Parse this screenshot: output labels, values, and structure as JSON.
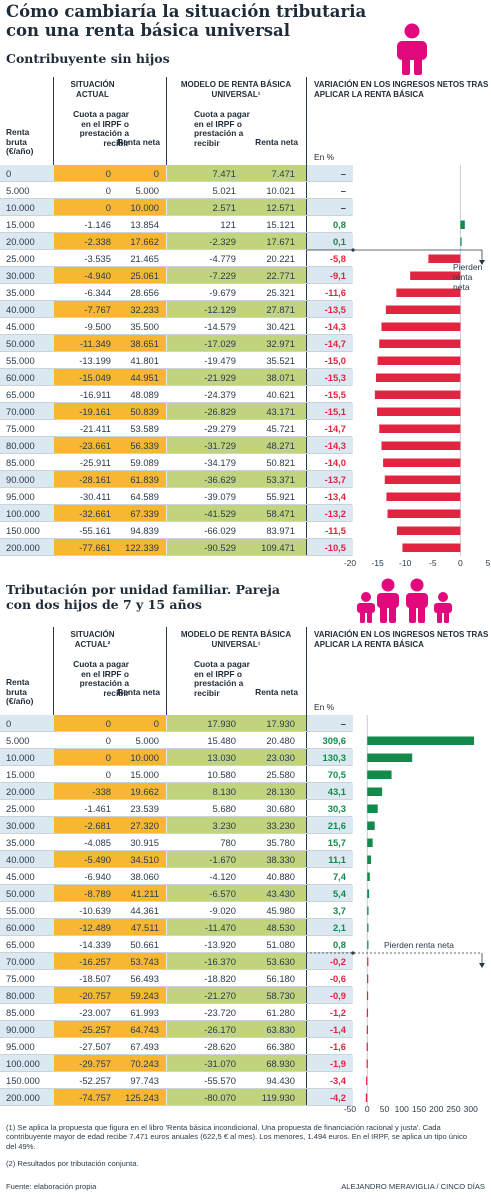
{
  "title": "Cómo cambiaría la situación tributaria con una renta básica universal",
  "colors": {
    "accent": "#e2097d",
    "yellow": "#f7b733",
    "green": "#c2d37e",
    "blue": "#dbe8f1",
    "pos_bar": "#138a4a",
    "neg_bar": "#e1243f",
    "pos_text": "#138a4a",
    "neg_text": "#e1243f"
  },
  "headers": {
    "situacion": "SITUACIÓN ACTUAL",
    "situacion2": "SITUACIÓN ACTUAL²",
    "modelo": "MODELO DE RENTA BÁSICA UNIVERSAL¹",
    "variacion": "VARIACIÓN EN LOS INGRESOS NETOS TRAS APLICAR LA RENTA BÁSICA",
    "renta_bruta": "Renta bruta (€/año)",
    "cuota": "Cuota a pagar en el IRPF o prestación a recibir",
    "renta_neta": "Renta neta",
    "en_pct": "En %"
  },
  "chart_data": [
    {
      "type": "bar",
      "title": "Contribuyente sin hijos",
      "categories": [
        "0",
        "5.000",
        "10.000",
        "15.000",
        "20.000",
        "25.000",
        "30.000",
        "35.000",
        "40.000",
        "45.000",
        "50.000",
        "55.000",
        "60.000",
        "65.000",
        "70.000",
        "75.000",
        "80.000",
        "85.000",
        "90.000",
        "95.000",
        "100.000",
        "150.000",
        "200.000"
      ],
      "cuota_actual": [
        "0",
        "0",
        "0",
        "-1.146",
        "-2.338",
        "-3.535",
        "-4.940",
        "-6.344",
        "-7.767",
        "-9.500",
        "-11.349",
        "-13.199",
        "-15.049",
        "-16.911",
        "-19.161",
        "-21.411",
        "-23.661",
        "-25.911",
        "-28.161",
        "-30.411",
        "-32.661",
        "-55.161",
        "-77.661"
      ],
      "neta_actual": [
        "0",
        "5.000",
        "10.000",
        "13.854",
        "17.662",
        "21.465",
        "25.061",
        "28.656",
        "32.233",
        "35.500",
        "38.651",
        "41.801",
        "44.951",
        "48.089",
        "50.839",
        "53.589",
        "56.339",
        "59.089",
        "61.839",
        "64.589",
        "67.339",
        "94.839",
        "122.339"
      ],
      "cuota_rbu": [
        "7.471",
        "5.021",
        "2.571",
        "121",
        "-2.329",
        "-4.779",
        "-7.229",
        "-9.679",
        "-12.129",
        "-14.579",
        "-17.029",
        "-19.479",
        "-21.929",
        "-24.379",
        "-26.829",
        "-29.279",
        "-31.729",
        "-34.179",
        "-36.629",
        "-39.079",
        "-41.529",
        "-66.029",
        "-90.529"
      ],
      "neta_rbu": [
        "7.471",
        "10.021",
        "12.571",
        "15.121",
        "17.671",
        "20.221",
        "22.771",
        "25.321",
        "27.871",
        "30.421",
        "32.971",
        "35.521",
        "38.071",
        "40.621",
        "43.171",
        "45.721",
        "48.271",
        "50.821",
        "53.371",
        "55.921",
        "58.471",
        "83.971",
        "109.471"
      ],
      "variacion_labels": [
        "–",
        "–",
        "–",
        "0,8",
        "0,1",
        "-5,8",
        "-9,1",
        "-11,6",
        "-13,5",
        "-14,3",
        "-14,7",
        "-15,0",
        "-15,3",
        "-15,5",
        "-15,1",
        "-14,7",
        "-14,3",
        "-14,0",
        "-13,7",
        "-13,4",
        "-13,2",
        "-11,5",
        "-10,5"
      ],
      "values": [
        null,
        null,
        null,
        0.8,
        0.1,
        -5.8,
        -9.1,
        -11.6,
        -13.5,
        -14.3,
        -14.7,
        -15.0,
        -15.3,
        -15.5,
        -15.1,
        -14.7,
        -14.3,
        -14.0,
        -13.7,
        -13.4,
        -13.2,
        -11.5,
        -10.5
      ],
      "xlim": [
        -20,
        5
      ],
      "ticks": [
        -20,
        -15,
        -10,
        -5,
        0,
        5
      ],
      "tick_labels": [
        "-20",
        "-15",
        "-10",
        "-5",
        "0",
        "5"
      ],
      "annotation": "Pierden renta neta",
      "annotation_after_row": 4
    },
    {
      "type": "bar",
      "title": "Tributación por unidad familiar. Pareja con dos hijos de 7 y 15 años",
      "categories": [
        "0",
        "5.000",
        "10.000",
        "15.000",
        "20.000",
        "25.000",
        "30.000",
        "35.000",
        "40.000",
        "45.000",
        "50.000",
        "55.000",
        "60.000",
        "65.000",
        "70.000",
        "75.000",
        "80.000",
        "85.000",
        "90.000",
        "95.000",
        "100.000",
        "150.000",
        "200.000"
      ],
      "cuota_actual": [
        "0",
        "0",
        "0",
        "0",
        "-338",
        "-1.461",
        "-2.681",
        "-4.085",
        "-5.490",
        "-6.940",
        "-8.789",
        "-10.639",
        "-12.489",
        "-14.339",
        "-16.257",
        "-18.507",
        "-20.757",
        "-23.007",
        "-25.257",
        "-27.507",
        "-29.757",
        "-52.257",
        "-74.757"
      ],
      "neta_actual": [
        "0",
        "5.000",
        "10.000",
        "15.000",
        "19.662",
        "23.539",
        "27.320",
        "30.915",
        "34.510",
        "38.060",
        "41.211",
        "44.361",
        "47.511",
        "50.661",
        "53.743",
        "56.493",
        "59.243",
        "61.993",
        "64.743",
        "67.493",
        "70.243",
        "97.743",
        "125.243"
      ],
      "cuota_rbu": [
        "17.930",
        "15.480",
        "13.030",
        "10.580",
        "8.130",
        "5.680",
        "3.230",
        "780",
        "-1.670",
        "-4.120",
        "-6.570",
        "-9.020",
        "-11.470",
        "-13.920",
        "-16.370",
        "-18.820",
        "-21.270",
        "-23.720",
        "-26.170",
        "-28.620",
        "-31.070",
        "-55.570",
        "-80.070"
      ],
      "neta_rbu": [
        "17.930",
        "20.480",
        "23.030",
        "25.580",
        "28.130",
        "30.680",
        "33.230",
        "35.780",
        "38.330",
        "40.880",
        "43.430",
        "45.980",
        "48.530",
        "51.080",
        "53.630",
        "56.180",
        "58.730",
        "61.280",
        "63.830",
        "66.380",
        "68.930",
        "94.430",
        "119.930"
      ],
      "variacion_labels": [
        "–",
        "309,6",
        "130,3",
        "70,5",
        "43,1",
        "30,3",
        "21,6",
        "15,7",
        "11,1",
        "7,4",
        "5,4",
        "3,7",
        "2,1",
        "0,8",
        "-0,2",
        "-0,6",
        "-0,9",
        "-1,2",
        "-1,4",
        "-1,6",
        "-1,9",
        "-3,4",
        "-4,2"
      ],
      "values": [
        null,
        309.6,
        130.3,
        70.5,
        43.1,
        30.3,
        21.6,
        15.7,
        11.1,
        7.4,
        5.4,
        3.7,
        2.1,
        0.8,
        -0.2,
        -0.6,
        -0.9,
        -1.2,
        -1.4,
        -1.6,
        -1.9,
        -3.4,
        -4.2
      ],
      "xlim": [
        -50,
        350
      ],
      "ticks": [
        -50,
        0,
        50,
        100,
        150,
        200,
        250,
        300
      ],
      "tick_labels": [
        "-50",
        "0",
        "50",
        "100",
        "150",
        "200",
        "250",
        "300"
      ],
      "annotation": "Pierden renta neta",
      "annotation_after_row": 13
    }
  ],
  "notes": [
    "(1) Se aplica la propuesta que figura en el libro 'Renta básica incondicional. Una propuesta de financiación racional y justa'. Cada contribuyente mayor de edad recibe 7.471 euros anuales (622,5 € al mes). Los menores, 1.494 euros. En el IRPF, se aplica un tipo único del 49%.",
    "(2) Resultados por tributación conjunta."
  ],
  "source": "Fuente: elaboración propia",
  "credit": "ALEJANDRO MERAVIGLIA / CINCO DÍAS"
}
